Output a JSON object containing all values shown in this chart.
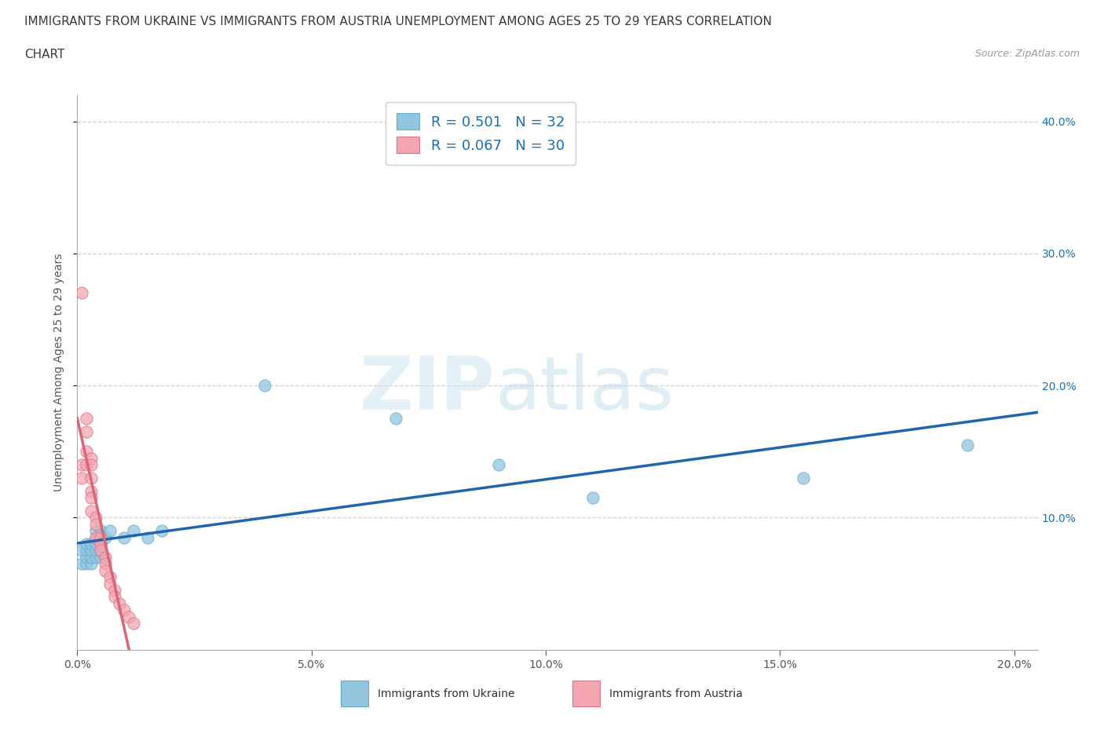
{
  "title_line1": "IMMIGRANTS FROM UKRAINE VS IMMIGRANTS FROM AUSTRIA UNEMPLOYMENT AMONG AGES 25 TO 29 YEARS CORRELATION",
  "title_line2": "CHART",
  "source_text": "Source: ZipAtlas.com",
  "watermark_zip": "ZIP",
  "watermark_atlas": "atlas",
  "ukraine_R": 0.501,
  "ukraine_N": 32,
  "austria_R": 0.067,
  "austria_N": 30,
  "ukraine_color": "#92c5de",
  "austria_color": "#f4a6b0",
  "ukraine_line_color": "#2166ac",
  "austria_line_solid_color": "#d6687a",
  "austria_line_dash_color": "#e8a0b0",
  "ukraine_scatter_x": [
    0.001,
    0.001,
    0.002,
    0.002,
    0.002,
    0.002,
    0.003,
    0.003,
    0.003,
    0.003,
    0.004,
    0.004,
    0.004,
    0.004,
    0.004,
    0.005,
    0.005,
    0.005,
    0.005,
    0.005,
    0.006,
    0.007,
    0.01,
    0.012,
    0.015,
    0.018,
    0.04,
    0.068,
    0.09,
    0.11,
    0.155,
    0.19
  ],
  "ukraine_scatter_y": [
    0.065,
    0.075,
    0.065,
    0.07,
    0.075,
    0.08,
    0.065,
    0.07,
    0.075,
    0.08,
    0.07,
    0.075,
    0.08,
    0.085,
    0.09,
    0.07,
    0.075,
    0.08,
    0.085,
    0.09,
    0.085,
    0.09,
    0.085,
    0.09,
    0.085,
    0.09,
    0.2,
    0.175,
    0.14,
    0.115,
    0.13,
    0.155
  ],
  "austria_scatter_x": [
    0.001,
    0.001,
    0.001,
    0.002,
    0.002,
    0.002,
    0.002,
    0.003,
    0.003,
    0.003,
    0.003,
    0.003,
    0.003,
    0.004,
    0.004,
    0.004,
    0.005,
    0.005,
    0.005,
    0.006,
    0.006,
    0.006,
    0.007,
    0.007,
    0.008,
    0.008,
    0.009,
    0.01,
    0.011,
    0.012
  ],
  "austria_scatter_y": [
    0.27,
    0.14,
    0.13,
    0.175,
    0.165,
    0.15,
    0.14,
    0.145,
    0.14,
    0.13,
    0.12,
    0.115,
    0.105,
    0.1,
    0.095,
    0.085,
    0.085,
    0.08,
    0.075,
    0.07,
    0.065,
    0.06,
    0.055,
    0.05,
    0.045,
    0.04,
    0.035,
    0.03,
    0.025,
    0.02
  ],
  "xlim": [
    0.0,
    0.205
  ],
  "ylim": [
    0.0,
    0.42
  ],
  "xticks": [
    0.0,
    0.05,
    0.1,
    0.15,
    0.2
  ],
  "yticks": [
    0.1,
    0.2,
    0.3,
    0.4
  ],
  "ylabel": "Unemployment Among Ages 25 to 29 years",
  "bg_color": "#ffffff",
  "grid_color": "#d0d0d0",
  "title_color": "#3a3a3a",
  "legend_text_color": "#1a6faf",
  "right_tick_color": "#1a6faf",
  "left_tick_color": "#555555",
  "bottom_tick_color": "#555555"
}
